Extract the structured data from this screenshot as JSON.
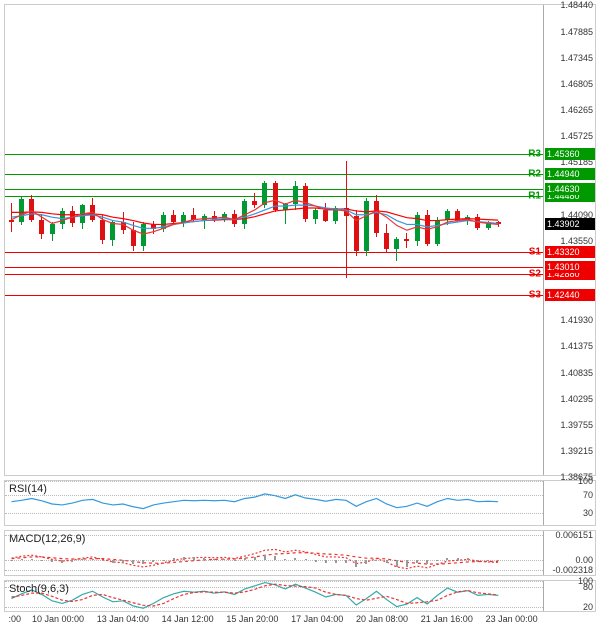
{
  "main": {
    "ylim": [
      1.38675,
      1.4844
    ],
    "yticks": [
      1.38675,
      1.39215,
      1.39755,
      1.40295,
      1.40835,
      1.41375,
      1.4193,
      1.4244,
      1.4301,
      1.4355,
      1.4409,
      1.4463,
      1.45185,
      1.45725,
      1.46265,
      1.46805,
      1.47345,
      1.47885,
      1.4844
    ],
    "ytick_labels": [
      "1.38675",
      "1.39215",
      "1.39755",
      "1.40295",
      "1.40835",
      "1.41375",
      "1.41930",
      "",
      "1.43010",
      "1.43550",
      "1.44090",
      "",
      "1.45185",
      "1.45725",
      "1.46265",
      "1.46805",
      "1.47345",
      "1.47885",
      "1.48440"
    ],
    "resistance": [
      {
        "name": "R3",
        "value": 1.4536,
        "label": "1.45360",
        "color": "#009900"
      },
      {
        "name": "R2",
        "value": 1.4494,
        "label": "1.44940",
        "color": "#009900"
      },
      {
        "name": "R1",
        "value": 1.4448,
        "label": "1.44480",
        "color": "#009900"
      }
    ],
    "r1_sub": {
      "value": 1.4463,
      "label": "1.44630",
      "color": "#009900"
    },
    "support": [
      {
        "name": "S1",
        "value": 1.4332,
        "label": "1.43320",
        "color": "#ee0000"
      },
      {
        "name": "S2",
        "value": 1.4288,
        "label": "1.42880",
        "color": "#ee0000"
      },
      {
        "name": "S3",
        "value": 1.4244,
        "label": "1.42440",
        "color": "#ee0000"
      }
    ],
    "s1_sub": {
      "value": 1.4301,
      "label": "1.43010",
      "color": "#ee0000"
    },
    "current_price": {
      "value": 1.43902,
      "label": "1.43902",
      "bg": "#000000"
    },
    "ma_colors": {
      "fast": "#ee3333",
      "mid": "#3399dd",
      "slow": "#ff0000"
    },
    "candles": [
      {
        "o": 1.44,
        "h": 1.4435,
        "l": 1.4375,
        "c": 1.4395,
        "t": 0
      },
      {
        "o": 1.4395,
        "h": 1.4448,
        "l": 1.4388,
        "c": 1.4442,
        "t": 1
      },
      {
        "o": 1.4442,
        "h": 1.445,
        "l": 1.4395,
        "c": 1.44,
        "t": 2
      },
      {
        "o": 1.44,
        "h": 1.4412,
        "l": 1.436,
        "c": 1.437,
        "t": 3
      },
      {
        "o": 1.437,
        "h": 1.4395,
        "l": 1.4355,
        "c": 1.439,
        "t": 4
      },
      {
        "o": 1.439,
        "h": 1.4425,
        "l": 1.438,
        "c": 1.4418,
        "t": 5
      },
      {
        "o": 1.4418,
        "h": 1.4428,
        "l": 1.4385,
        "c": 1.4392,
        "t": 6
      },
      {
        "o": 1.4392,
        "h": 1.4432,
        "l": 1.438,
        "c": 1.443,
        "t": 7
      },
      {
        "o": 1.443,
        "h": 1.4445,
        "l": 1.4395,
        "c": 1.44,
        "t": 8
      },
      {
        "o": 1.44,
        "h": 1.441,
        "l": 1.435,
        "c": 1.4358,
        "t": 9
      },
      {
        "o": 1.4358,
        "h": 1.44,
        "l": 1.4345,
        "c": 1.4395,
        "t": 10
      },
      {
        "o": 1.4395,
        "h": 1.4415,
        "l": 1.437,
        "c": 1.4378,
        "t": 11
      },
      {
        "o": 1.4378,
        "h": 1.4395,
        "l": 1.4335,
        "c": 1.4345,
        "t": 12
      },
      {
        "o": 1.4345,
        "h": 1.4395,
        "l": 1.4335,
        "c": 1.439,
        "t": 13
      },
      {
        "o": 1.439,
        "h": 1.4398,
        "l": 1.437,
        "c": 1.438,
        "t": 14
      },
      {
        "o": 1.438,
        "h": 1.4415,
        "l": 1.4375,
        "c": 1.441,
        "t": 15
      },
      {
        "o": 1.441,
        "h": 1.442,
        "l": 1.4388,
        "c": 1.4395,
        "t": 16
      },
      {
        "o": 1.4395,
        "h": 1.4415,
        "l": 1.4385,
        "c": 1.441,
        "t": 17
      },
      {
        "o": 1.441,
        "h": 1.4425,
        "l": 1.4395,
        "c": 1.44,
        "t": 18
      },
      {
        "o": 1.44,
        "h": 1.4412,
        "l": 1.438,
        "c": 1.4408,
        "t": 19
      },
      {
        "o": 1.4408,
        "h": 1.4418,
        "l": 1.4395,
        "c": 1.44,
        "t": 20
      },
      {
        "o": 1.44,
        "h": 1.4415,
        "l": 1.4395,
        "c": 1.4412,
        "t": 21
      },
      {
        "o": 1.4412,
        "h": 1.442,
        "l": 1.4385,
        "c": 1.439,
        "t": 22
      },
      {
        "o": 1.439,
        "h": 1.4442,
        "l": 1.438,
        "c": 1.4438,
        "t": 23
      },
      {
        "o": 1.4438,
        "h": 1.4455,
        "l": 1.4425,
        "c": 1.443,
        "t": 24
      },
      {
        "o": 1.443,
        "h": 1.448,
        "l": 1.4425,
        "c": 1.4475,
        "t": 25
      },
      {
        "o": 1.4475,
        "h": 1.448,
        "l": 1.4415,
        "c": 1.442,
        "t": 26
      },
      {
        "o": 1.442,
        "h": 1.4435,
        "l": 1.439,
        "c": 1.4432,
        "t": 27
      },
      {
        "o": 1.4432,
        "h": 1.448,
        "l": 1.442,
        "c": 1.447,
        "t": 28
      },
      {
        "o": 1.447,
        "h": 1.4475,
        "l": 1.4395,
        "c": 1.4402,
        "t": 29
      },
      {
        "o": 1.4402,
        "h": 1.4425,
        "l": 1.439,
        "c": 1.442,
        "t": 30
      },
      {
        "o": 1.442,
        "h": 1.4435,
        "l": 1.4395,
        "c": 1.4398,
        "t": 31
      },
      {
        "o": 1.4398,
        "h": 1.4428,
        "l": 1.439,
        "c": 1.4425,
        "t": 32
      },
      {
        "o": 1.4425,
        "h": 1.4522,
        "l": 1.428,
        "c": 1.4408,
        "t": 33
      },
      {
        "o": 1.4408,
        "h": 1.442,
        "l": 1.4325,
        "c": 1.4335,
        "t": 34
      },
      {
        "o": 1.4335,
        "h": 1.4445,
        "l": 1.4325,
        "c": 1.4438,
        "t": 35
      },
      {
        "o": 1.4438,
        "h": 1.445,
        "l": 1.4365,
        "c": 1.4372,
        "t": 36
      },
      {
        "o": 1.4372,
        "h": 1.439,
        "l": 1.433,
        "c": 1.434,
        "t": 37
      },
      {
        "o": 1.434,
        "h": 1.4365,
        "l": 1.4315,
        "c": 1.436,
        "t": 38
      },
      {
        "o": 1.436,
        "h": 1.4372,
        "l": 1.4342,
        "c": 1.4355,
        "t": 39
      },
      {
        "o": 1.4355,
        "h": 1.4415,
        "l": 1.4345,
        "c": 1.441,
        "t": 40
      },
      {
        "o": 1.441,
        "h": 1.442,
        "l": 1.4345,
        "c": 1.435,
        "t": 41
      },
      {
        "o": 1.435,
        "h": 1.4405,
        "l": 1.4345,
        "c": 1.44,
        "t": 42
      },
      {
        "o": 1.44,
        "h": 1.4422,
        "l": 1.4388,
        "c": 1.4418,
        "t": 43
      },
      {
        "o": 1.4418,
        "h": 1.4422,
        "l": 1.4395,
        "c": 1.4398,
        "t": 44
      },
      {
        "o": 1.4398,
        "h": 1.441,
        "l": 1.4388,
        "c": 1.4405,
        "t": 45
      },
      {
        "o": 1.4405,
        "h": 1.4412,
        "l": 1.4378,
        "c": 1.4382,
        "t": 46
      },
      {
        "o": 1.4382,
        "h": 1.4398,
        "l": 1.4378,
        "c": 1.4395,
        "t": 47
      },
      {
        "o": 1.4395,
        "h": 1.4398,
        "l": 1.4385,
        "c": 1.439,
        "t": 48
      }
    ],
    "ma_fast": [
      1.44,
      1.441,
      1.4418,
      1.4405,
      1.4392,
      1.4398,
      1.4405,
      1.4412,
      1.4415,
      1.44,
      1.4392,
      1.439,
      1.4378,
      1.437,
      1.4375,
      1.4382,
      1.439,
      1.4395,
      1.44,
      1.4402,
      1.4403,
      1.4405,
      1.44,
      1.441,
      1.442,
      1.4435,
      1.444,
      1.4432,
      1.444,
      1.4435,
      1.4428,
      1.442,
      1.442,
      1.4418,
      1.4398,
      1.4408,
      1.4418,
      1.4405,
      1.4388,
      1.4378,
      1.4385,
      1.438,
      1.4385,
      1.4395,
      1.4398,
      1.44,
      1.4395,
      1.4392,
      1.439
    ],
    "ma_mid": [
      1.4405,
      1.4408,
      1.4412,
      1.441,
      1.4405,
      1.4402,
      1.4405,
      1.4408,
      1.441,
      1.4405,
      1.4398,
      1.4395,
      1.4388,
      1.4382,
      1.4382,
      1.4385,
      1.439,
      1.4393,
      1.4396,
      1.4398,
      1.44,
      1.4402,
      1.44,
      1.4405,
      1.4412,
      1.442,
      1.4428,
      1.4428,
      1.443,
      1.443,
      1.4428,
      1.4424,
      1.4422,
      1.442,
      1.441,
      1.441,
      1.4415,
      1.441,
      1.4398,
      1.439,
      1.439,
      1.4385,
      1.4388,
      1.4392,
      1.4395,
      1.4398,
      1.4396,
      1.4394,
      1.4392
    ],
    "ma_slow": [
      1.4415,
      1.4415,
      1.4416,
      1.4415,
      1.4412,
      1.441,
      1.441,
      1.4411,
      1.4412,
      1.441,
      1.4405,
      1.4402,
      1.4398,
      1.4393,
      1.439,
      1.439,
      1.4392,
      1.4394,
      1.4396,
      1.4398,
      1.4399,
      1.44,
      1.44,
      1.4402,
      1.4406,
      1.4412,
      1.4418,
      1.442,
      1.4422,
      1.4424,
      1.4424,
      1.4422,
      1.4422,
      1.4422,
      1.4418,
      1.4416,
      1.4418,
      1.4416,
      1.441,
      1.4404,
      1.4402,
      1.4398,
      1.4398,
      1.44,
      1.4401,
      1.4402,
      1.4401,
      1.44,
      1.4399
    ]
  },
  "xaxis": {
    "ticks": [
      {
        "pos": 0.02,
        "label": ":00"
      },
      {
        "pos": 0.1,
        "label": "10 Jan 00:00"
      },
      {
        "pos": 0.22,
        "label": "13 Jan 04:00"
      },
      {
        "pos": 0.34,
        "label": "14 Jan 12:00"
      },
      {
        "pos": 0.46,
        "label": "15 Jan 20:00"
      },
      {
        "pos": 0.58,
        "label": "17 Jan 04:00"
      },
      {
        "pos": 0.7,
        "label": "20 Jan 08:00"
      },
      {
        "pos": 0.82,
        "label": "21 Jan 16:00"
      },
      {
        "pos": 0.94,
        "label": "23 Jan 00:00"
      }
    ]
  },
  "rsi": {
    "label": "RSI(14)",
    "ylim": [
      0,
      100
    ],
    "yticks": [
      30,
      70,
      100
    ],
    "color": "#3399dd",
    "values": [
      55,
      58,
      62,
      57,
      50,
      48,
      52,
      58,
      60,
      52,
      48,
      50,
      44,
      40,
      48,
      52,
      55,
      58,
      57,
      58,
      57,
      58,
      55,
      62,
      65,
      72,
      68,
      62,
      70,
      63,
      60,
      56,
      60,
      58,
      45,
      55,
      62,
      50,
      42,
      45,
      52,
      45,
      55,
      62,
      58,
      60,
      55,
      56,
      55
    ]
  },
  "macd": {
    "label": "MACD(12,26,9)",
    "ylim": [
      -0.004,
      0.007
    ],
    "yticks": [
      {
        "v": -0.002318,
        "l": "-0.002318"
      },
      {
        "v": 0,
        "l": "0.00"
      },
      {
        "v": 0.006151,
        "l": "0.006151"
      }
    ],
    "macd_color": "#ee3333",
    "signal_color": "#ee3333",
    "macd_values": [
      0.0005,
      0.001,
      0.0012,
      0.0008,
      0.0002,
      -0.0002,
      0.0,
      0.0005,
      0.0008,
      0.0002,
      -0.0004,
      -0.0006,
      -0.0012,
      -0.0016,
      -0.0012,
      -0.0006,
      0.0,
      0.0004,
      0.0006,
      0.0007,
      0.0006,
      0.0007,
      0.0004,
      0.001,
      0.0016,
      0.0024,
      0.0026,
      0.002,
      0.0024,
      0.002,
      0.0014,
      0.0008,
      0.0008,
      0.0006,
      -0.0008,
      -0.0004,
      0.0004,
      -0.0004,
      -0.0016,
      -0.002,
      -0.0014,
      -0.0018,
      -0.001,
      -0.0002,
      0.0,
      0.0002,
      -0.0002,
      -0.0004,
      -0.0005
    ],
    "signal_values": [
      0.0004,
      0.0006,
      0.0008,
      0.0008,
      0.0006,
      0.0004,
      0.0003,
      0.0003,
      0.0004,
      0.0004,
      0.0002,
      0.0,
      -0.0003,
      -0.0006,
      -0.0007,
      -0.0007,
      -0.0005,
      -0.0003,
      -0.0001,
      0.0001,
      0.0002,
      0.0003,
      0.0003,
      0.0005,
      0.0008,
      0.0012,
      0.0015,
      0.0016,
      0.0018,
      0.0018,
      0.0017,
      0.0015,
      0.0014,
      0.0012,
      0.0008,
      0.0005,
      0.0005,
      0.0003,
      -0.0001,
      -0.0005,
      -0.0007,
      -0.0009,
      -0.0009,
      -0.0008,
      -0.0006,
      -0.0004,
      -0.0003,
      -0.0003,
      -0.0003
    ],
    "hist_color": "#999999"
  },
  "stoch": {
    "label": "Stoch(9,6,3)",
    "ylim": [
      0,
      100
    ],
    "yticks": [
      20,
      80,
      100
    ],
    "k_color": "#33aaaa",
    "d_color": "#ee3333",
    "k_values": [
      45,
      60,
      72,
      58,
      38,
      30,
      40,
      58,
      68,
      50,
      35,
      38,
      22,
      15,
      30,
      48,
      60,
      68,
      65,
      68,
      62,
      66,
      58,
      75,
      85,
      95,
      88,
      75,
      90,
      78,
      65,
      50,
      58,
      55,
      25,
      45,
      68,
      42,
      20,
      28,
      48,
      28,
      55,
      78,
      65,
      70,
      55,
      58,
      55
    ],
    "d_values": [
      50,
      55,
      62,
      62,
      52,
      40,
      36,
      42,
      55,
      58,
      48,
      40,
      32,
      24,
      22,
      30,
      45,
      58,
      64,
      66,
      65,
      65,
      62,
      66,
      74,
      85,
      90,
      86,
      84,
      82,
      78,
      65,
      58,
      55,
      45,
      40,
      46,
      52,
      42,
      30,
      32,
      35,
      40,
      55,
      66,
      70,
      63,
      60,
      56
    ]
  },
  "colors": {
    "up": "#009933",
    "down": "#dd1111",
    "grid": "#cccccc",
    "axis_text": "#333333"
  }
}
